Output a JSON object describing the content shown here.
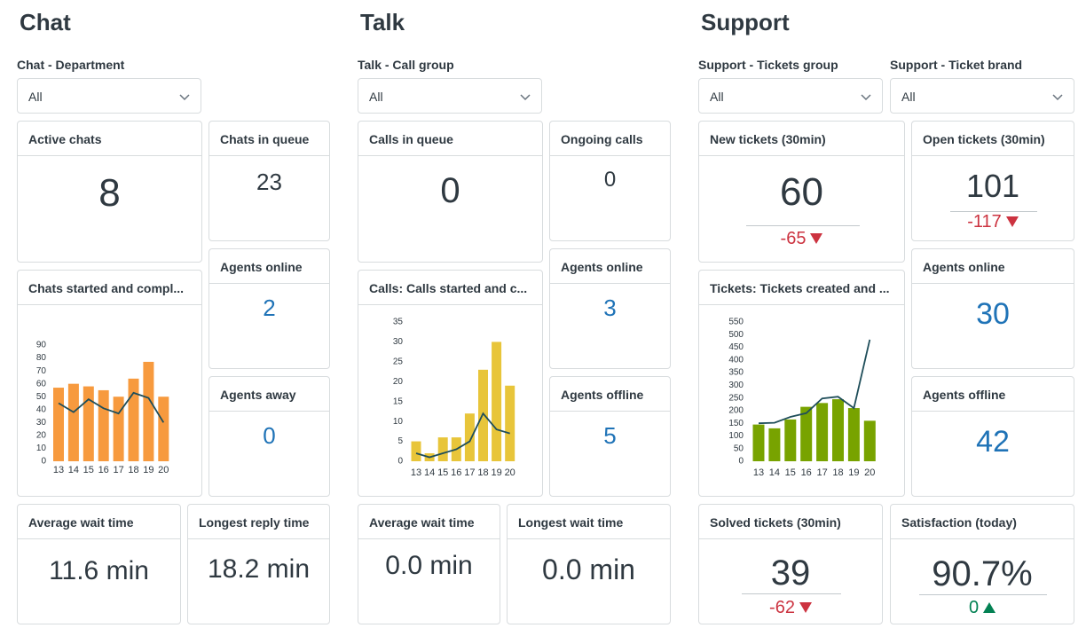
{
  "sections": [
    {
      "title": "Chat",
      "filters": [
        {
          "label": "Chat - Department",
          "value": "All"
        }
      ],
      "cards": [
        {
          "title": "Active chats",
          "value": "8"
        },
        {
          "title": "Chats in queue",
          "value": "23"
        },
        {
          "title": "Chats started and compl...",
          "chart": {
            "type": "bar-line",
            "categories": [
              "13",
              "14",
              "15",
              "16",
              "17",
              "18",
              "19",
              "20"
            ],
            "series": [
              {
                "type": "bar",
                "color": "#f79a3e",
                "values": [
                  57,
                  60,
                  58,
                  55,
                  50,
                  64,
                  77,
                  50
                ]
              },
              {
                "type": "line",
                "color": "#1f4e5a",
                "values": [
                  45,
                  38,
                  48,
                  41,
                  37,
                  53,
                  49,
                  30
                ]
              }
            ],
            "ylim": [
              0,
              90
            ],
            "yticks": [
              0,
              10,
              20,
              30,
              40,
              50,
              60,
              70,
              80,
              90
            ]
          }
        },
        {
          "title": "Agents online",
          "value": "2",
          "value_color": "#1f73b7"
        },
        {
          "title": "Agents away",
          "value": "0",
          "value_color": "#1f73b7"
        },
        {
          "title": "Average wait time",
          "value": "11.6 min"
        },
        {
          "title": "Longest reply time",
          "value": "18.2 min"
        }
      ]
    },
    {
      "title": "Talk",
      "filters": [
        {
          "label": "Talk - Call group",
          "value": "All"
        }
      ],
      "cards": [
        {
          "title": "Calls in queue",
          "value": "0"
        },
        {
          "title": "Ongoing calls",
          "value": "0"
        },
        {
          "title": "Calls: Calls started and c...",
          "chart": {
            "type": "bar-line",
            "categories": [
              "13",
              "14",
              "15",
              "16",
              "17",
              "18",
              "19",
              "20"
            ],
            "series": [
              {
                "type": "bar",
                "color": "#e8c53a",
                "values": [
                  5,
                  2,
                  6,
                  6,
                  12,
                  23,
                  30,
                  19
                ]
              },
              {
                "type": "line",
                "color": "#1f4e5a",
                "values": [
                  2,
                  1,
                  2,
                  3,
                  5,
                  12,
                  8,
                  7
                ]
              }
            ],
            "ylim": [
              0,
              35
            ],
            "yticks": [
              0,
              5,
              10,
              15,
              20,
              25,
              30,
              35
            ]
          }
        },
        {
          "title": "Agents online",
          "value": "3",
          "value_color": "#1f73b7"
        },
        {
          "title": "Agents offline",
          "value": "5",
          "value_color": "#1f73b7"
        },
        {
          "title": "Average wait time",
          "value": "0.0 min"
        },
        {
          "title": "Longest wait time",
          "value": "0.0 min"
        }
      ]
    },
    {
      "title": "Support",
      "filters": [
        {
          "label": "Support - Tickets group",
          "value": "All"
        },
        {
          "label": "Support - Ticket brand",
          "value": "All"
        }
      ],
      "cards": [
        {
          "title": "New tickets (30min)",
          "value": "60",
          "delta": "-65",
          "trend": "down"
        },
        {
          "title": "Open tickets (30min)",
          "value": "101",
          "delta": "-117",
          "trend": "down"
        },
        {
          "title": "Tickets: Tickets created and ...",
          "chart": {
            "type": "bar-line",
            "categories": [
              "13",
              "14",
              "15",
              "16",
              "17",
              "18",
              "19",
              "20"
            ],
            "series": [
              {
                "type": "bar",
                "color": "#78a300",
                "values": [
                  145,
                  130,
                  165,
                  215,
                  230,
                  245,
                  210,
                  160
                ]
              },
              {
                "type": "line",
                "color": "#1f4e5a",
                "values": [
                  150,
                  152,
                  175,
                  190,
                  248,
                  255,
                  210,
                  480
                ]
              }
            ],
            "ylim": [
              0,
              550
            ],
            "yticks": [
              0,
              50,
              100,
              150,
              200,
              250,
              300,
              350,
              400,
              450,
              500,
              550
            ]
          }
        },
        {
          "title": "Agents online",
          "value": "30",
          "value_color": "#1f73b7"
        },
        {
          "title": "Agents offline",
          "value": "42",
          "value_color": "#1f73b7"
        },
        {
          "title": "Solved tickets (30min)",
          "value": "39",
          "delta": "-62",
          "trend": "down"
        },
        {
          "title": "Satisfaction (today)",
          "value": "90.7%",
          "delta": "0",
          "trend": "up"
        }
      ]
    }
  ]
}
